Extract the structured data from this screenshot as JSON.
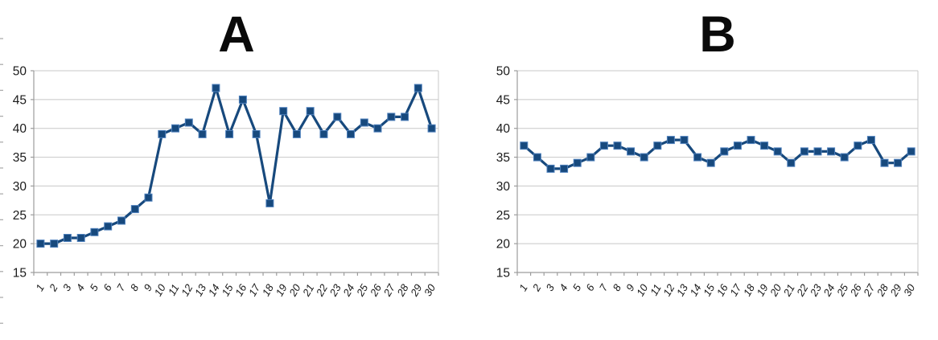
{
  "figure": {
    "background": "#ffffff",
    "colors": {
      "series_line": "#17497D",
      "marker_fill": "#17497D",
      "marker_edge": "#4F81BD",
      "gridline": "#C8C8C8",
      "axis_line": "#9C9C9C",
      "label_text": "#1A1A1A",
      "title_text": "#0A0A0A",
      "edge_tick": "#ADADAD"
    }
  },
  "chart_data": [
    {
      "type": "line",
      "title": "A",
      "marker": "square",
      "grid": true,
      "legend": null,
      "xlabel": "",
      "ylabel": "",
      "ylim": [
        15,
        50
      ],
      "yticks": [
        15,
        20,
        25,
        30,
        35,
        40,
        45,
        50
      ],
      "categories": [
        "1",
        "2",
        "3",
        "4",
        "5",
        "6",
        "7",
        "8",
        "9",
        "10",
        "11",
        "12",
        "13",
        "14",
        "15",
        "16",
        "17",
        "18",
        "19",
        "20",
        "21",
        "22",
        "23",
        "24",
        "25",
        "26",
        "27",
        "28",
        "29",
        "30"
      ],
      "values": [
        20,
        20,
        21,
        21,
        22,
        23,
        24,
        26,
        28,
        39,
        40,
        41,
        39,
        47,
        39,
        45,
        39,
        27,
        43,
        39,
        43,
        39,
        42,
        39,
        41,
        40,
        42,
        42,
        47,
        40
      ]
    },
    {
      "type": "line",
      "title": "B",
      "marker": "square",
      "grid": true,
      "legend": null,
      "xlabel": "",
      "ylabel": "",
      "ylim": [
        15,
        50
      ],
      "yticks": [
        15,
        20,
        25,
        30,
        35,
        40,
        45,
        50
      ],
      "categories": [
        "1",
        "2",
        "3",
        "4",
        "5",
        "6",
        "7",
        "8",
        "9",
        "10",
        "11",
        "12",
        "13",
        "14",
        "15",
        "16",
        "17",
        "18",
        "19",
        "20",
        "21",
        "22",
        "23",
        "24",
        "25",
        "26",
        "27",
        "28",
        "29",
        "30"
      ],
      "values": [
        37,
        35,
        33,
        33,
        34,
        35,
        37,
        37,
        36,
        35,
        37,
        38,
        38,
        35,
        34,
        36,
        37,
        38,
        37,
        36,
        34,
        36,
        36,
        36,
        35,
        37,
        38,
        34,
        34,
        36
      ]
    }
  ]
}
